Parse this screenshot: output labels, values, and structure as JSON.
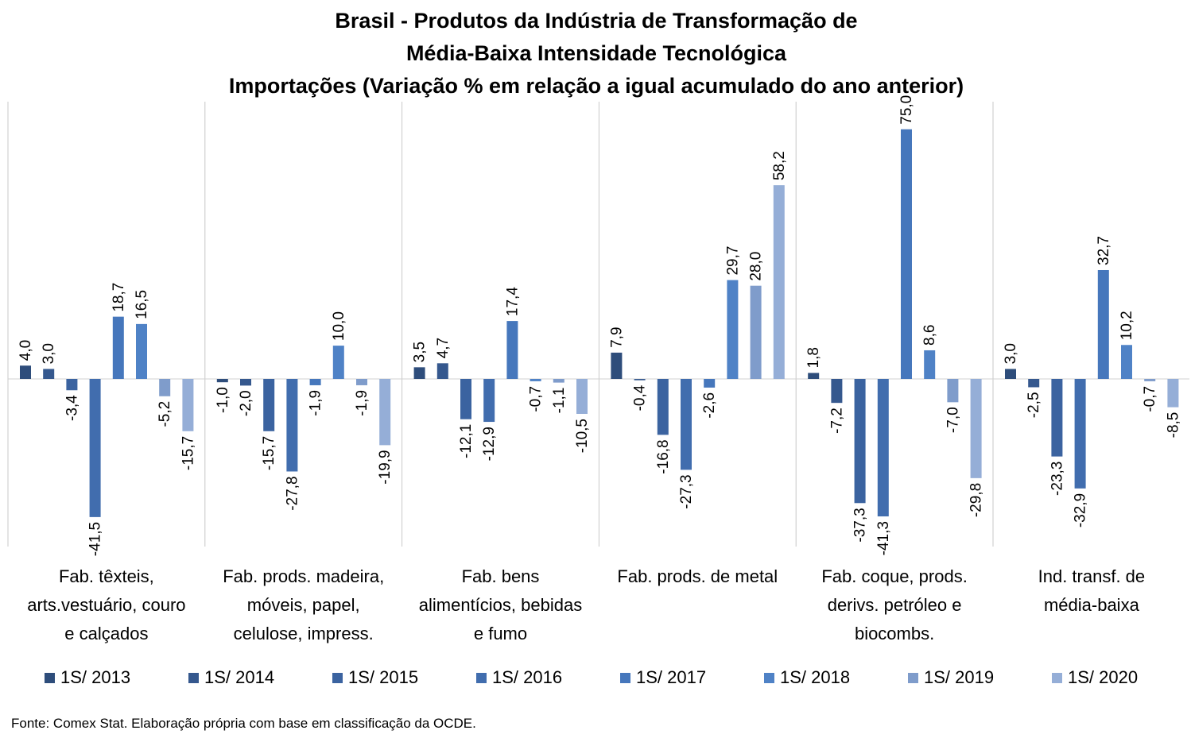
{
  "chart_data": {
    "type": "bar",
    "title": [
      "Brasil - Produtos da Indústria de Transformação de",
      "Média-Baixa Intensidade Tecnológica",
      "Importações (Variação % em relação a igual acumulado do ano anterior)"
    ],
    "categories": [
      [
        "Fab. têxteis,",
        "arts.vestuário, couro",
        "e calçados"
      ],
      [
        "Fab. prods. madeira,",
        "móveis, papel,",
        "celulose, impress."
      ],
      [
        "Fab. bens",
        "alimentícios, bebidas",
        "e fumo"
      ],
      [
        "Fab. prods. de metal"
      ],
      [
        "Fab. coque, prods.",
        "derivs. petróleo e",
        "biocombs."
      ],
      [
        "Ind. transf. de",
        "média-baixa"
      ]
    ],
    "series": [
      {
        "name": "1S/ 2013",
        "color": "#2E4D7B",
        "values": [
          4.0,
          -1.0,
          3.5,
          7.9,
          1.8,
          3.0
        ]
      },
      {
        "name": "1S/ 2014",
        "color": "#35588E",
        "values": [
          3.0,
          -2.0,
          4.7,
          -0.4,
          -7.2,
          -2.5
        ]
      },
      {
        "name": "1S/ 2015",
        "color": "#3B63A0",
        "values": [
          -3.4,
          -15.7,
          -12.1,
          -16.8,
          -37.3,
          -23.3
        ]
      },
      {
        "name": "1S/ 2016",
        "color": "#416DAE",
        "values": [
          -41.5,
          -27.8,
          -12.9,
          -27.3,
          -41.3,
          -32.9
        ]
      },
      {
        "name": "1S/ 2017",
        "color": "#4677BC",
        "values": [
          18.7,
          -1.9,
          17.4,
          -2.6,
          75.0,
          32.7
        ]
      },
      {
        "name": "1S/ 2018",
        "color": "#4F82C6",
        "values": [
          16.5,
          10.0,
          -0.7,
          29.7,
          8.6,
          10.2
        ]
      },
      {
        "name": "1S/ 2019",
        "color": "#7F9CCB",
        "values": [
          -5.2,
          -1.9,
          -1.1,
          28.0,
          -7.0,
          -0.7
        ]
      },
      {
        "name": "1S/ 2020",
        "color": "#95AED7",
        "values": [
          -15.7,
          -19.9,
          -10.5,
          58.2,
          -29.8,
          -8.5
        ]
      }
    ],
    "labels": [
      [
        "4,0",
        "-1,0",
        "3,5",
        "7,9",
        "1,8",
        "3,0"
      ],
      [
        "3,0",
        "-2,0",
        "4,7",
        "-0,4",
        "-7,2",
        "-2,5"
      ],
      [
        "-3,4",
        "-15,7",
        "-12,1",
        "-16,8",
        "-37,3",
        "-23,3"
      ],
      [
        "-41,5",
        "-27,8",
        "-12,9",
        "-27,3",
        "-41,3",
        "-32,9"
      ],
      [
        "18,7",
        "-1,9",
        "17,4",
        "-2,6",
        "75,0",
        "32,7"
      ],
      [
        "16,5",
        "10,0",
        "-0,7",
        "29,7",
        "8,6",
        "10,2"
      ],
      [
        "-5,2",
        "-1,9",
        "-1,1",
        "28,0",
        "-7,0",
        "-0,7"
      ],
      [
        "-15,7",
        "-19,9",
        "-10,5",
        "58,2",
        "-29,8",
        "-8,5"
      ]
    ],
    "xlabel": "",
    "ylabel": "",
    "grid": false,
    "legend": "bottom"
  },
  "source": "Fonte: Comex Stat. Elaboração própria com base em classificação da OCDE."
}
